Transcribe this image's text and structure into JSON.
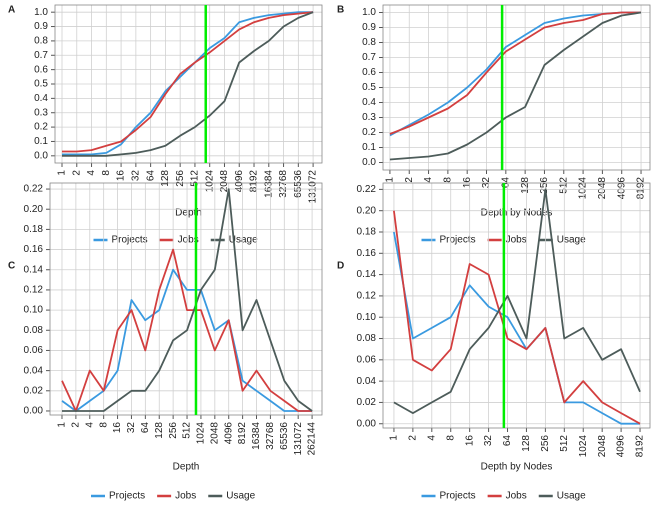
{
  "chart_data": [
    {
      "type": "line",
      "panel": "A",
      "x_label": "Depth",
      "xscale": "log2",
      "grid": true,
      "vline": 850,
      "vline_color": "#00ee00",
      "x": [
        1,
        2,
        4,
        8,
        16,
        32,
        64,
        128,
        256,
        512,
        1024,
        2048,
        4096,
        8192,
        16384,
        32768,
        65536,
        131072
      ],
      "xlim": [
        0.72,
        199000
      ],
      "xticks": [
        1,
        2,
        4,
        8,
        16,
        32,
        64,
        128,
        256,
        512,
        1024,
        2048,
        4096,
        8192,
        16384,
        32768,
        65536,
        131072
      ],
      "ylim": [
        -0.05,
        1.05
      ],
      "yticks": [
        {
          "value": 0,
          "label": "0.0"
        },
        0.1,
        0.2,
        0.3,
        0.4,
        0.5,
        0.6,
        0.7,
        0.8,
        0.9,
        {
          "value": 1,
          "label": "1.0"
        }
      ],
      "series": [
        {
          "name": "Projects",
          "color": "#3a9ae0",
          "values": [
            0.01,
            0.01,
            0.01,
            0.02,
            0.08,
            0.2,
            0.3,
            0.45,
            0.55,
            0.65,
            0.75,
            0.82,
            0.93,
            0.96,
            0.98,
            0.99,
            1.0,
            1.0
          ]
        },
        {
          "name": "Jobs",
          "color": "#d33f3f",
          "values": [
            0.03,
            0.03,
            0.04,
            0.07,
            0.1,
            0.18,
            0.27,
            0.43,
            0.57,
            0.65,
            0.72,
            0.8,
            0.88,
            0.93,
            0.96,
            0.98,
            0.99,
            1.0
          ]
        },
        {
          "name": "Usage",
          "color": "#4d5c5a",
          "values": [
            0,
            0,
            0,
            0,
            0.01,
            0.02,
            0.04,
            0.07,
            0.14,
            0.2,
            0.28,
            0.38,
            0.65,
            0.73,
            0.8,
            0.9,
            0.96,
            1.0
          ]
        }
      ]
    },
    {
      "type": "line",
      "panel": "B",
      "x_label": "Depth by Nodes",
      "xscale": "log2",
      "grid": true,
      "vline": 56,
      "vline_color": "#00ee00",
      "x": [
        1,
        2,
        4,
        8,
        16,
        32,
        64,
        128,
        256,
        512,
        1024,
        2048,
        4096,
        8192
      ],
      "xlim": [
        0.78,
        11300
      ],
      "xticks": [
        1,
        2,
        4,
        8,
        16,
        32,
        64,
        128,
        256,
        512,
        1024,
        2048,
        4096,
        8192
      ],
      "ylim": [
        -0.05,
        1.05
      ],
      "yticks": [
        {
          "value": 0,
          "label": "0.0"
        },
        0.1,
        0.2,
        0.3,
        0.4,
        0.5,
        0.6,
        0.7,
        0.8,
        0.9,
        {
          "value": 1,
          "label": "1.0"
        }
      ],
      "series": [
        {
          "name": "Projects",
          "color": "#3a9ae0",
          "values": [
            0.18,
            0.25,
            0.32,
            0.4,
            0.5,
            0.62,
            0.77,
            0.85,
            0.93,
            0.96,
            0.98,
            0.99,
            1.0,
            1.0
          ]
        },
        {
          "name": "Jobs",
          "color": "#d33f3f",
          "values": [
            0.19,
            0.24,
            0.3,
            0.36,
            0.45,
            0.6,
            0.74,
            0.82,
            0.9,
            0.93,
            0.95,
            0.99,
            1.0,
            1.0
          ]
        },
        {
          "name": "Usage",
          "color": "#4d5c5a",
          "values": [
            0.02,
            0.03,
            0.04,
            0.06,
            0.12,
            0.2,
            0.3,
            0.37,
            0.65,
            0.75,
            0.84,
            0.93,
            0.98,
            1.0
          ]
        }
      ]
    },
    {
      "type": "line",
      "panel": "C",
      "x_label": "Depth",
      "xscale": "log2",
      "grid": true,
      "vline": 800,
      "vline_color": "#00ee00",
      "x": [
        1,
        2,
        4,
        8,
        16,
        32,
        64,
        128,
        256,
        512,
        1024,
        2048,
        4096,
        8192,
        16384,
        32768,
        65536,
        131072,
        262144
      ],
      "xlim": [
        0.55,
        430000
      ],
      "xticks": [
        1,
        2,
        4,
        8,
        16,
        32,
        64,
        128,
        256,
        512,
        1024,
        2048,
        4096,
        8192,
        16384,
        32768,
        65536,
        131072,
        262144
      ],
      "ylim": [
        -0.004,
        0.226
      ],
      "yticks": [
        {
          "value": 0,
          "label": "0.00"
        },
        0.02,
        0.04,
        0.06,
        0.08,
        {
          "value": 0.1,
          "label": "0.10"
        },
        0.12,
        0.14,
        0.16,
        0.18,
        {
          "value": 0.2,
          "label": "0.20"
        },
        0.22
      ],
      "series": [
        {
          "name": "Projects",
          "color": "#3a9ae0",
          "values": [
            0.01,
            0.0,
            0.01,
            0.02,
            0.04,
            0.11,
            0.09,
            0.1,
            0.14,
            0.12,
            0.12,
            0.08,
            0.09,
            0.03,
            0.02,
            0.01,
            0.0,
            0.0,
            0.0
          ]
        },
        {
          "name": "Jobs",
          "color": "#d33f3f",
          "values": [
            0.03,
            0.0,
            0.04,
            0.02,
            0.08,
            0.1,
            0.06,
            0.12,
            0.16,
            0.1,
            0.1,
            0.06,
            0.09,
            0.02,
            0.04,
            0.02,
            0.01,
            0.0,
            0.0
          ]
        },
        {
          "name": "Usage",
          "color": "#4d5c5a",
          "values": [
            0,
            0,
            0,
            0,
            0.01,
            0.02,
            0.02,
            0.04,
            0.07,
            0.08,
            0.12,
            0.14,
            0.22,
            0.08,
            0.11,
            0.07,
            0.03,
            0.01,
            0
          ]
        }
      ]
    },
    {
      "type": "line",
      "panel": "D",
      "x_label": "Depth by Nodes",
      "xscale": "log2",
      "grid": true,
      "vline": 56,
      "vline_color": "#00ee00",
      "x": [
        1,
        2,
        4,
        8,
        16,
        32,
        64,
        128,
        256,
        512,
        1024,
        2048,
        4096,
        8192
      ],
      "xlim": [
        0.67,
        11800
      ],
      "xticks": [
        1,
        2,
        4,
        8,
        16,
        32,
        64,
        128,
        256,
        512,
        1024,
        2048,
        4096,
        8192
      ],
      "ylim": [
        -0.004,
        0.226
      ],
      "yticks": [
        {
          "value": 0,
          "label": "0.00"
        },
        0.02,
        0.04,
        0.06,
        0.08,
        {
          "value": 0.1,
          "label": "0.10"
        },
        0.12,
        0.14,
        0.16,
        0.18,
        {
          "value": 0.2,
          "label": "0.20"
        },
        0.22
      ],
      "series": [
        {
          "name": "Projects",
          "color": "#3a9ae0",
          "values": [
            0.18,
            0.08,
            0.09,
            0.1,
            0.13,
            0.11,
            0.1,
            0.07,
            0.09,
            0.02,
            0.02,
            0.01,
            0.0,
            0.0
          ]
        },
        {
          "name": "Jobs",
          "color": "#d33f3f",
          "values": [
            0.2,
            0.06,
            0.05,
            0.07,
            0.15,
            0.14,
            0.08,
            0.07,
            0.09,
            0.02,
            0.04,
            0.02,
            0.01,
            0.0
          ]
        },
        {
          "name": "Usage",
          "color": "#4d5c5a",
          "values": [
            0.02,
            0.01,
            0.02,
            0.03,
            0.07,
            0.09,
            0.12,
            0.08,
            0.22,
            0.08,
            0.09,
            0.06,
            0.07,
            0.03
          ]
        }
      ]
    }
  ]
}
